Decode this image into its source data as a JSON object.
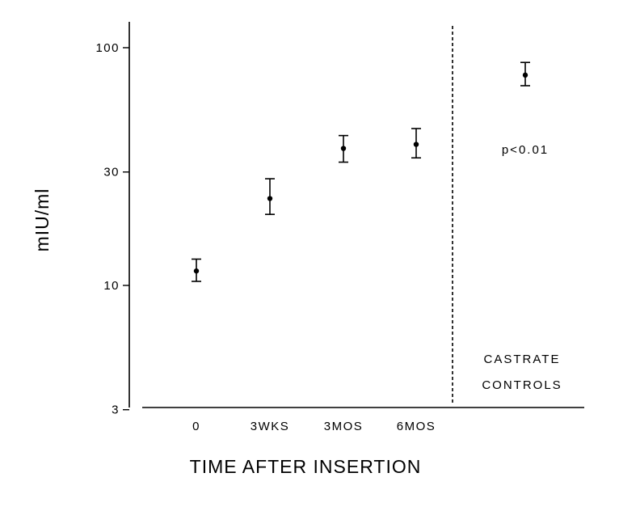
{
  "chart_data": {
    "type": "scatter",
    "title": "",
    "xlabel": "TIME AFTER INSERTION",
    "ylabel": "mIU/ml",
    "y_scale": "log",
    "ylim": [
      3,
      140
    ],
    "y_ticks": [
      {
        "value": 3,
        "label": "3"
      },
      {
        "value": 10,
        "label": "10"
      },
      {
        "value": 30,
        "label": "30"
      },
      {
        "value": 100,
        "label": "100"
      }
    ],
    "categories": [
      "0",
      "3WKS",
      "3MOS",
      "6MOS",
      "CASTRATE CONTROLS"
    ],
    "x_tick_labels": [
      "0",
      "3WKS",
      "3MOS",
      "6MOS"
    ],
    "points": [
      {
        "category": "0",
        "y": 11.5,
        "err_low": 10.4,
        "err_high": 12.9
      },
      {
        "category": "3WKS",
        "y": 23.2,
        "err_low": 19.9,
        "err_high": 28.1
      },
      {
        "category": "3MOS",
        "y": 37.7,
        "err_low": 33.0,
        "err_high": 42.7
      },
      {
        "category": "6MOS",
        "y": 39.2,
        "err_low": 34.4,
        "err_high": 45.7
      },
      {
        "category": "CASTRATE CONTROLS",
        "y": 76.7,
        "err_low": 69.2,
        "err_high": 86.7
      }
    ],
    "divider": "dashed line between 6MOS and CASTRATE CONTROLS",
    "annotations": {
      "group_label_line1": "CASTRATE",
      "group_label_line2": "CONTROLS",
      "p_value": "p<0.01"
    },
    "grid": false,
    "legend": "none"
  }
}
